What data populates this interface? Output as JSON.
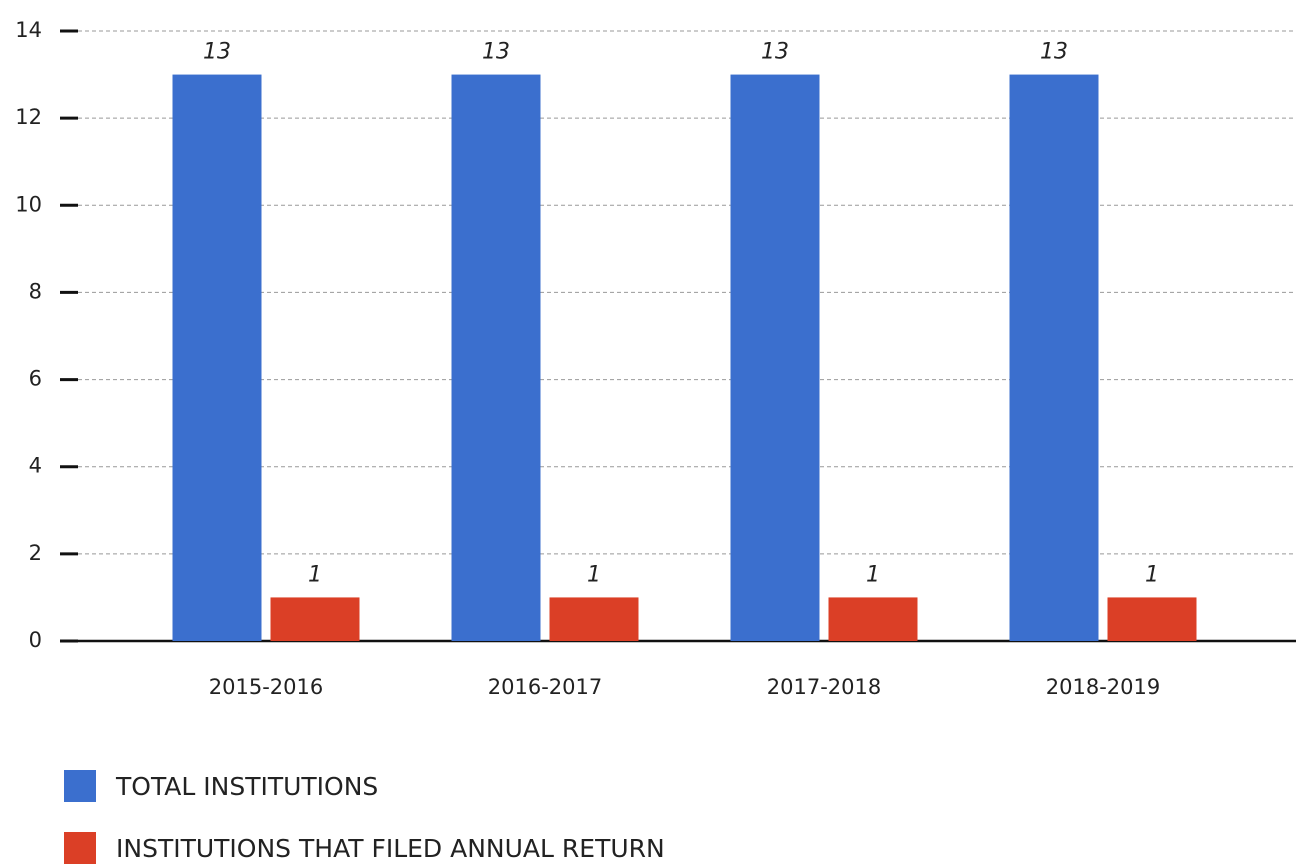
{
  "chart_data": {
    "type": "bar",
    "categories": [
      "2015-2016",
      "2016-2017",
      "2017-2018",
      "2018-2019"
    ],
    "series": [
      {
        "name": "TOTAL INSTITUTIONS",
        "color": "#3b6fce",
        "values": [
          13,
          13,
          13,
          13
        ]
      },
      {
        "name": "INSTITUTIONS THAT FILED ANNUAL RETURN",
        "color": "#db3f26",
        "values": [
          1,
          1,
          1,
          1
        ]
      }
    ],
    "ylim": [
      0,
      14
    ],
    "yticks": [
      0,
      2,
      4,
      6,
      8,
      10,
      12,
      14
    ],
    "grid": true,
    "data_labels": true
  }
}
